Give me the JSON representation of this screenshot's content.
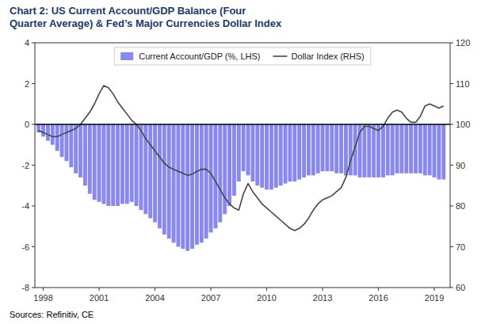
{
  "chart_data": {
    "type": "bar",
    "title": "Chart 2: US Current Account/GDP Balance (Four\nQuarter Average) & Fed’s Major Currencies Dollar Index",
    "source": "Sources: Refinitiv, CE",
    "x": [
      1997.75,
      1998.0,
      1998.25,
      1998.5,
      1998.75,
      1999.0,
      1999.25,
      1999.5,
      1999.75,
      2000.0,
      2000.25,
      2000.5,
      2000.75,
      2001.0,
      2001.25,
      2001.5,
      2001.75,
      2002.0,
      2002.25,
      2002.5,
      2002.75,
      2003.0,
      2003.25,
      2003.5,
      2003.75,
      2004.0,
      2004.25,
      2004.5,
      2004.75,
      2005.0,
      2005.25,
      2005.5,
      2005.75,
      2006.0,
      2006.25,
      2006.5,
      2006.75,
      2007.0,
      2007.25,
      2007.5,
      2007.75,
      2008.0,
      2008.25,
      2008.5,
      2008.75,
      2009.0,
      2009.25,
      2009.5,
      2009.75,
      2010.0,
      2010.25,
      2010.5,
      2010.75,
      2011.0,
      2011.25,
      2011.5,
      2011.75,
      2012.0,
      2012.25,
      2012.5,
      2012.75,
      2013.0,
      2013.25,
      2013.5,
      2013.75,
      2014.0,
      2014.25,
      2014.5,
      2014.75,
      2015.0,
      2015.25,
      2015.5,
      2015.75,
      2016.0,
      2016.25,
      2016.5,
      2016.75,
      2017.0,
      2017.25,
      2017.5,
      2017.75,
      2018.0,
      2018.25,
      2018.5,
      2018.75,
      2019.0,
      2019.25,
      2019.5
    ],
    "series": [
      {
        "name": "Current Account/GDP (%, LHS)",
        "type": "bar",
        "color": "#8888ee",
        "values": [
          -0.4,
          -0.6,
          -0.8,
          -1.0,
          -1.3,
          -1.6,
          -1.8,
          -2.1,
          -2.4,
          -2.6,
          -3.0,
          -3.4,
          -3.7,
          -3.8,
          -3.9,
          -4.0,
          -4.0,
          -4.0,
          -3.9,
          -3.9,
          -3.8,
          -4.0,
          -4.2,
          -4.4,
          -4.6,
          -4.8,
          -5.1,
          -5.4,
          -5.6,
          -5.8,
          -6.0,
          -6.1,
          -6.2,
          -6.1,
          -5.9,
          -5.8,
          -5.6,
          -5.3,
          -5.1,
          -4.8,
          -4.4,
          -4.0,
          -3.5,
          -2.8,
          -2.3,
          -2.5,
          -2.8,
          -3.0,
          -3.1,
          -3.2,
          -3.2,
          -3.1,
          -3.0,
          -2.9,
          -2.8,
          -2.8,
          -2.7,
          -2.6,
          -2.5,
          -2.5,
          -2.4,
          -2.3,
          -2.3,
          -2.3,
          -2.4,
          -2.4,
          -2.5,
          -2.5,
          -2.5,
          -2.6,
          -2.6,
          -2.6,
          -2.6,
          -2.6,
          -2.6,
          -2.5,
          -2.5,
          -2.4,
          -2.4,
          -2.4,
          -2.4,
          -2.4,
          -2.4,
          -2.5,
          -2.5,
          -2.6,
          -2.7,
          -2.7
        ]
      },
      {
        "name": "Dollar Index (RHS)",
        "type": "line",
        "color": "#464646",
        "axis": "y2",
        "values": [
          98.5,
          98.0,
          97.5,
          97.0,
          97.0,
          97.5,
          98.0,
          98.5,
          99.0,
          100.0,
          101.5,
          103.0,
          105.0,
          107.5,
          109.5,
          109.0,
          107.5,
          105.5,
          104.0,
          102.5,
          101.0,
          100.0,
          98.5,
          96.5,
          95.0,
          93.5,
          92.0,
          90.5,
          89.5,
          89.0,
          88.5,
          88.0,
          87.5,
          87.8,
          88.5,
          89.0,
          89.0,
          88.0,
          86.0,
          84.0,
          82.0,
          80.5,
          79.5,
          79.0,
          83.0,
          85.5,
          83.5,
          82.0,
          80.5,
          79.5,
          78.5,
          77.5,
          76.5,
          75.5,
          74.5,
          74.0,
          74.5,
          75.5,
          77.0,
          79.0,
          80.5,
          81.5,
          82.0,
          82.5,
          83.5,
          84.5,
          87.0,
          91.0,
          94.5,
          98.0,
          99.5,
          99.5,
          99.0,
          98.5,
          99.5,
          101.5,
          103.0,
          103.5,
          103.0,
          101.5,
          100.5,
          100.5,
          102.0,
          104.5,
          105.0,
          104.5,
          104.0,
          104.5
        ]
      }
    ],
    "xlim": [
      1997.55,
      2019.85
    ],
    "xticks": [
      1998,
      2001,
      2004,
      2007,
      2010,
      2013,
      2016,
      2019
    ],
    "ylim": [
      -8,
      4
    ],
    "yticks": [
      -8,
      -6,
      -4,
      -2,
      0,
      2,
      4
    ],
    "y2lim": [
      60,
      120
    ],
    "y2ticks": [
      60,
      70,
      80,
      90,
      100,
      110,
      120
    ],
    "grid": false,
    "legend": "top"
  }
}
